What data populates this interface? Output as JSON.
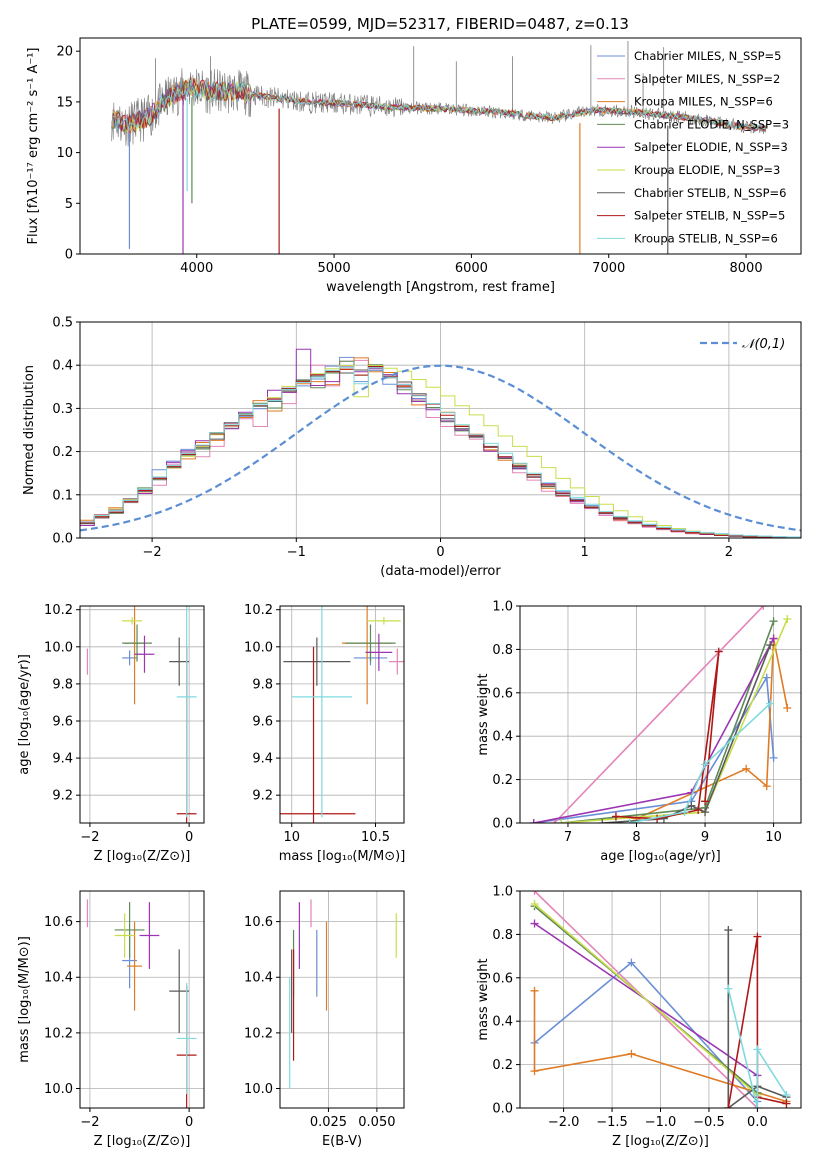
{
  "figure_title": "PLATE=0599, MJD=52317, FIBERID=0487, z=0.13",
  "chart_data": [
    {
      "id": "spectrum",
      "type": "line",
      "xlabel": "wavelength [Angstrom, rest frame]",
      "ylabel": "Flux [fλ10⁻¹⁷ erg cm⁻² s⁻¹ A⁻¹]",
      "xlim": [
        3150,
        8400
      ],
      "ylim": [
        0,
        21.3
      ],
      "xticks": [
        4000,
        5000,
        6000,
        7000,
        8000
      ],
      "yticks": [
        0,
        5,
        10,
        15,
        20
      ],
      "grid": false,
      "legend_position": "top-right",
      "legend": [
        "Chabrier MILES, N_SSP=5",
        "Salpeter MILES, N_SSP=2",
        "Kroupa MILES, N_SSP=6",
        "Chabrier ELODIE, N_SSP=3",
        "Salpeter ELODIE, N_SSP=3",
        "Kroupa ELODIE, N_SSP=3",
        "Chabrier STELIB, N_SSP=6",
        "Salpeter STELIB, N_SSP=5",
        "Kroupa STELIB, N_SSP=6"
      ],
      "continuum_x": [
        3350,
        3500,
        3650,
        3800,
        3950,
        4100,
        4300,
        4500,
        4800,
        5100,
        5400,
        5800,
        6200,
        6600,
        6900,
        7200,
        7600,
        8000,
        8150
      ],
      "continuum_y": [
        13.5,
        12.8,
        13.5,
        15.5,
        16.5,
        16.0,
        16.0,
        15.5,
        15.0,
        14.8,
        14.5,
        14.3,
        14.0,
        13.4,
        14.2,
        14.0,
        13.4,
        12.5,
        12.4
      ],
      "absorption_dips": [
        {
          "x": 3510,
          "y": 0.5
        },
        {
          "x": 3900,
          "y": 0
        },
        {
          "x": 3930,
          "y": 6.2
        },
        {
          "x": 3965,
          "y": 5.0
        },
        {
          "x": 4600,
          "y": 0
        },
        {
          "x": 6790,
          "y": 0
        },
        {
          "x": 7430,
          "y": 0
        }
      ],
      "emission_spikes": [
        {
          "x": 3700,
          "y": 19.3
        },
        {
          "x": 4100,
          "y": 19.5
        },
        {
          "x": 5580,
          "y": 20.5
        },
        {
          "x": 5890,
          "y": 19.0
        },
        {
          "x": 6300,
          "y": 19.5
        },
        {
          "x": 6870,
          "y": 20.6
        },
        {
          "x": 7140,
          "y": 21.0
        },
        {
          "x": 7250,
          "y": 17.8
        },
        {
          "x": 7400,
          "y": 20.4
        }
      ]
    },
    {
      "id": "residual_histogram",
      "type": "bar",
      "xlabel": "(data-model)/error",
      "ylabel": "Normed distribution",
      "xlim": [
        -2.5,
        2.5
      ],
      "ylim": [
        0,
        0.5
      ],
      "xticks": [
        -2,
        -1,
        0,
        1,
        2
      ],
      "yticks": [
        0.0,
        0.1,
        0.2,
        0.3,
        0.4,
        0.5
      ],
      "grid": true,
      "legend_position": "top-right",
      "legend": [
        "𝒩(0,1)"
      ],
      "bin_width": 0.1
    },
    {
      "id": "age_vs_Z",
      "type": "scatter",
      "xlabel": "Z [log₁₀(Z/Z⊙)]",
      "ylabel": "age  [log₁₀(age/yr)]",
      "xlim": [
        -2.2,
        0.3
      ],
      "ylim": [
        9.05,
        10.22
      ],
      "xticks": [
        -2,
        0
      ],
      "yticks": [
        9.2,
        9.4,
        9.6,
        9.8,
        10.0,
        10.2
      ],
      "grid": true
    },
    {
      "id": "age_vs_mass",
      "type": "scatter",
      "xlabel": "mass [log₁₀(M/M⊙)]",
      "ylabel": "",
      "xlim": [
        9.93,
        10.67
      ],
      "ylim": [
        9.05,
        10.22
      ],
      "xticks": [
        10.0,
        10.5
      ],
      "yticks": [
        9.2,
        9.4,
        9.6,
        9.8,
        10.0,
        10.2
      ],
      "grid": true
    },
    {
      "id": "massweight_vs_age",
      "type": "line",
      "xlabel": "age  [log₁₀(age/yr)]",
      "ylabel": "mass weight",
      "xlim": [
        6.3,
        10.4
      ],
      "ylim": [
        0,
        1.0
      ],
      "xticks": [
        7,
        8,
        9,
        10
      ],
      "yticks": [
        0.0,
        0.2,
        0.4,
        0.6,
        0.8,
        1.0
      ],
      "grid": true
    },
    {
      "id": "mass_vs_Z",
      "type": "scatter",
      "xlabel": "Z [log₁₀(Z/Z⊙)]",
      "ylabel": "mass [log₁₀(M/M⊙)]",
      "xlim": [
        -2.2,
        0.3
      ],
      "ylim": [
        9.93,
        10.71
      ],
      "xticks": [
        -2,
        0
      ],
      "yticks": [
        10.0,
        10.2,
        10.4,
        10.6
      ],
      "grid": true
    },
    {
      "id": "mass_vs_EBV",
      "type": "scatter",
      "xlabel": "E(B-V)",
      "ylabel": "",
      "xlim": [
        0.0,
        0.064
      ],
      "ylim": [
        9.93,
        10.71
      ],
      "xticks": [
        0.025,
        0.05
      ],
      "xticklabels": [
        "0.025",
        "0.050"
      ],
      "yticks": [
        10.0,
        10.2,
        10.4,
        10.6
      ],
      "grid": true
    },
    {
      "id": "massweight_vs_Z",
      "type": "line",
      "xlabel": "Z [log₁₀(Z/Z⊙)]",
      "ylabel": "mass weight",
      "xlim": [
        -2.45,
        0.45
      ],
      "ylim": [
        0,
        1.0
      ],
      "xticks": [
        -2.0,
        -1.5,
        -1.0,
        -0.5,
        0.0
      ],
      "xticklabels": [
        "−2.0",
        "−1.5",
        "−1.0",
        "−0.5",
        "0.0"
      ],
      "yticks": [
        0.0,
        0.2,
        0.4,
        0.6,
        0.8,
        1.0
      ],
      "grid": true
    }
  ],
  "series_colors": [
    "#6a8fd6",
    "#e285b8",
    "#e07b25",
    "#5e8a55",
    "#9b35b2",
    "#c9dd4b",
    "#5a5a5a",
    "#b01818",
    "#7fdade"
  ],
  "gaussian_color": "#5b8ed4",
  "hist_bins": [
    [
      0.034,
      0.052,
      0.064,
      0.082,
      0.112,
      0.158,
      0.178,
      0.205,
      0.214,
      0.24,
      0.26,
      0.281,
      0.299,
      0.32,
      0.347,
      0.352,
      0.368,
      0.398,
      0.418,
      0.362,
      0.388,
      0.356,
      0.348,
      0.323,
      0.302,
      0.276,
      0.258,
      0.237,
      0.21,
      0.188,
      0.165,
      0.147,
      0.126,
      0.107,
      0.09,
      0.075,
      0.059,
      0.048,
      0.039,
      0.031,
      0.024,
      0.019,
      0.015,
      0.012,
      0.01,
      0.007,
      0.005,
      0.004,
      0.003,
      0.002
    ],
    [
      0.038,
      0.046,
      0.06,
      0.086,
      0.104,
      0.122,
      0.171,
      0.198,
      0.188,
      0.212,
      0.265,
      0.276,
      0.258,
      0.321,
      0.311,
      0.36,
      0.4,
      0.352,
      0.409,
      0.411,
      0.395,
      0.378,
      0.356,
      0.32,
      0.279,
      0.258,
      0.238,
      0.229,
      0.202,
      0.184,
      0.151,
      0.134,
      0.108,
      0.096,
      0.08,
      0.068,
      0.052,
      0.04,
      0.033,
      0.025,
      0.019,
      0.014,
      0.01,
      0.008,
      0.006,
      0.004,
      0.003,
      0.002,
      0.001,
      0.001
    ],
    [
      0.041,
      0.054,
      0.07,
      0.083,
      0.104,
      0.14,
      0.162,
      0.183,
      0.221,
      0.226,
      0.259,
      0.279,
      0.318,
      0.294,
      0.337,
      0.357,
      0.362,
      0.355,
      0.39,
      0.417,
      0.385,
      0.383,
      0.35,
      0.308,
      0.302,
      0.291,
      0.261,
      0.24,
      0.204,
      0.18,
      0.172,
      0.14,
      0.115,
      0.098,
      0.087,
      0.07,
      0.059,
      0.042,
      0.035,
      0.028,
      0.022,
      0.016,
      0.011,
      0.009,
      0.007,
      0.005,
      0.003,
      0.002,
      0.002,
      0.001
    ],
    [
      0.036,
      0.05,
      0.057,
      0.091,
      0.116,
      0.141,
      0.164,
      0.192,
      0.206,
      0.244,
      0.254,
      0.288,
      0.312,
      0.301,
      0.343,
      0.366,
      0.348,
      0.382,
      0.409,
      0.377,
      0.401,
      0.378,
      0.343,
      0.317,
      0.302,
      0.269,
      0.248,
      0.233,
      0.211,
      0.187,
      0.168,
      0.147,
      0.119,
      0.104,
      0.087,
      0.072,
      0.058,
      0.047,
      0.036,
      0.029,
      0.023,
      0.016,
      0.012,
      0.009,
      0.006,
      0.005,
      0.003,
      0.002,
      0.001,
      0.001
    ],
    [
      0.029,
      0.053,
      0.066,
      0.09,
      0.103,
      0.14,
      0.175,
      0.202,
      0.225,
      0.24,
      0.253,
      0.291,
      0.306,
      0.342,
      0.337,
      0.437,
      0.353,
      0.362,
      0.396,
      0.385,
      0.392,
      0.378,
      0.334,
      0.316,
      0.297,
      0.271,
      0.25,
      0.235,
      0.201,
      0.187,
      0.16,
      0.141,
      0.126,
      0.103,
      0.084,
      0.07,
      0.056,
      0.044,
      0.036,
      0.027,
      0.021,
      0.016,
      0.012,
      0.008,
      0.006,
      0.005,
      0.003,
      0.002,
      0.001,
      0.001
    ],
    [
      0.036,
      0.05,
      0.067,
      0.089,
      0.108,
      0.137,
      0.163,
      0.189,
      0.211,
      0.239,
      0.26,
      0.284,
      0.306,
      0.325,
      0.351,
      0.364,
      0.38,
      0.392,
      0.399,
      0.327,
      0.399,
      0.393,
      0.386,
      0.367,
      0.349,
      0.329,
      0.306,
      0.285,
      0.26,
      0.236,
      0.212,
      0.189,
      0.163,
      0.138,
      0.116,
      0.096,
      0.078,
      0.063,
      0.049,
      0.039,
      0.029,
      0.022,
      0.016,
      0.012,
      0.008,
      0.006,
      0.004,
      0.003,
      0.002,
      0.001
    ],
    [
      0.033,
      0.047,
      0.059,
      0.086,
      0.108,
      0.135,
      0.164,
      0.193,
      0.209,
      0.229,
      0.267,
      0.284,
      0.305,
      0.316,
      0.34,
      0.365,
      0.375,
      0.386,
      0.382,
      0.389,
      0.394,
      0.371,
      0.361,
      0.334,
      0.311,
      0.276,
      0.253,
      0.234,
      0.212,
      0.184,
      0.162,
      0.142,
      0.12,
      0.099,
      0.088,
      0.07,
      0.057,
      0.045,
      0.035,
      0.028,
      0.021,
      0.016,
      0.012,
      0.009,
      0.006,
      0.004,
      0.003,
      0.002,
      0.001,
      0.001
    ],
    [
      0.035,
      0.049,
      0.06,
      0.084,
      0.11,
      0.138,
      0.166,
      0.194,
      0.214,
      0.241,
      0.26,
      0.285,
      0.307,
      0.322,
      0.346,
      0.362,
      0.378,
      0.385,
      0.391,
      0.377,
      0.397,
      0.374,
      0.352,
      0.33,
      0.31,
      0.284,
      0.258,
      0.237,
      0.21,
      0.188,
      0.166,
      0.146,
      0.123,
      0.104,
      0.086,
      0.071,
      0.058,
      0.046,
      0.036,
      0.028,
      0.022,
      0.016,
      0.012,
      0.009,
      0.006,
      0.005,
      0.003,
      0.002,
      0.001,
      0.001
    ],
    [
      0.037,
      0.052,
      0.063,
      0.087,
      0.113,
      0.141,
      0.168,
      0.196,
      0.215,
      0.243,
      0.262,
      0.286,
      0.308,
      0.318,
      0.344,
      0.36,
      0.372,
      0.388,
      0.395,
      0.357,
      0.394,
      0.372,
      0.355,
      0.329,
      0.311,
      0.29,
      0.262,
      0.239,
      0.219,
      0.196,
      0.173,
      0.15,
      0.128,
      0.11,
      0.094,
      0.078,
      0.061,
      0.05,
      0.04,
      0.032,
      0.025,
      0.02,
      0.015,
      0.012,
      0.01,
      0.007,
      0.005,
      0.004,
      0.003,
      0.002
    ]
  ],
  "ssp_errorbars": {
    "age_vs_Z": [
      {
        "x": -1.2,
        "y": 9.94,
        "xerr": 0.15,
        "yerr": 0.04
      },
      {
        "x": -2.05,
        "y": 9.92,
        "xerr": 0.0,
        "yerr": 0.07
      },
      {
        "x": -1.1,
        "y": 10.02,
        "xerr": 0.2,
        "yerr": 0.33
      },
      {
        "x": -1.05,
        "y": 10.02,
        "xerr": 0.3,
        "yerr": 0.1
      },
      {
        "x": -0.9,
        "y": 9.96,
        "xerr": 0.2,
        "yerr": 0.1
      },
      {
        "x": -1.15,
        "y": 10.14,
        "xerr": 0.2,
        "yerr": 0.02
      },
      {
        "x": -0.2,
        "y": 9.92,
        "xerr": 0.2,
        "yerr": 0.13
      },
      {
        "x": -0.05,
        "y": 9.1,
        "xerr": 0.2,
        "yerr": 0.9
      },
      {
        "x": -0.05,
        "y": 9.73,
        "xerr": 0.2,
        "yerr": 0.65
      }
    ],
    "age_vs_mass": [
      {
        "x": 10.47,
        "y": 9.94,
        "xerr": 0.1,
        "yerr": 0.04
      },
      {
        "x": 10.63,
        "y": 9.92,
        "xerr": 0.05,
        "yerr": 0.07
      },
      {
        "x": 10.45,
        "y": 10.02,
        "xerr": 0.15,
        "yerr": 0.33
      },
      {
        "x": 10.47,
        "y": 10.02,
        "xerr": 0.15,
        "yerr": 0.1
      },
      {
        "x": 10.52,
        "y": 9.97,
        "xerr": 0.08,
        "yerr": 0.1
      },
      {
        "x": 10.55,
        "y": 10.14,
        "xerr": 0.1,
        "yerr": 0.02
      },
      {
        "x": 10.15,
        "y": 9.92,
        "xerr": 0.2,
        "yerr": 0.13
      },
      {
        "x": 10.13,
        "y": 9.1,
        "xerr": 0.25,
        "yerr": 0.9
      },
      {
        "x": 10.18,
        "y": 9.73,
        "xerr": 0.18,
        "yerr": 0.65
      }
    ],
    "mass_vs_Z": [
      {
        "x": -1.2,
        "y": 10.46,
        "xerr": 0.15,
        "yerr": 0.1
      },
      {
        "x": -2.05,
        "y": 10.63,
        "xerr": 0.0,
        "yerr": 0.05
      },
      {
        "x": -1.1,
        "y": 10.44,
        "xerr": 0.15,
        "yerr": 0.16
      },
      {
        "x": -1.2,
        "y": 10.57,
        "xerr": 0.3,
        "yerr": 0.1
      },
      {
        "x": -0.8,
        "y": 10.55,
        "xerr": 0.2,
        "yerr": 0.12
      },
      {
        "x": -1.3,
        "y": 10.55,
        "xerr": 0.2,
        "yerr": 0.08
      },
      {
        "x": -0.2,
        "y": 10.35,
        "xerr": 0.2,
        "yerr": 0.15
      },
      {
        "x": -0.05,
        "y": 10.12,
        "xerr": 0.2,
        "yerr": 0.25
      },
      {
        "x": -0.05,
        "y": 10.18,
        "xerr": 0.2,
        "yerr": 0.2
      }
    ],
    "mass_vs_EBV": [
      {
        "x": 0.019,
        "y": 10.45,
        "xerr": 0.0,
        "yerr": 0.12
      },
      {
        "x": 0.016,
        "y": 10.63,
        "xerr": 0.0,
        "yerr": 0.05
      },
      {
        "x": 0.024,
        "y": 10.44,
        "xerr": 0.0,
        "yerr": 0.16
      },
      {
        "x": 0.007,
        "y": 10.45,
        "xerr": 0.0,
        "yerr": 0.12
      },
      {
        "x": 0.01,
        "y": 10.55,
        "xerr": 0.0,
        "yerr": 0.12
      },
      {
        "x": 0.06,
        "y": 10.55,
        "xerr": 0.0,
        "yerr": 0.08
      },
      {
        "x": 0.006,
        "y": 10.35,
        "xerr": 0.0,
        "yerr": 0.15
      },
      {
        "x": 0.007,
        "y": 10.3,
        "xerr": 0.0,
        "yerr": 0.2
      },
      {
        "x": 0.005,
        "y": 10.2,
        "xerr": 0.0,
        "yerr": 0.2
      }
    ]
  },
  "mass_weight_series": {
    "age": [
      [
        [
          6.5,
          0.0
        ],
        [
          8.8,
          0.1
        ],
        [
          9.9,
          0.67
        ],
        [
          10.0,
          0.3
        ]
      ],
      [
        [
          6.8,
          0.0
        ],
        [
          9.85,
          1.0
        ]
      ],
      [
        [
          7.7,
          0.03
        ],
        [
          8.0,
          0.02
        ],
        [
          9.6,
          0.25
        ],
        [
          9.9,
          0.17
        ],
        [
          10.0,
          0.85
        ],
        [
          10.2,
          0.53
        ]
      ],
      [
        [
          6.9,
          0.0
        ],
        [
          9.0,
          0.07
        ],
        [
          10.0,
          0.93
        ]
      ],
      [
        [
          6.5,
          0.0
        ],
        [
          8.8,
          0.14
        ],
        [
          10.0,
          0.85
        ]
      ],
      [
        [
          6.9,
          0.0
        ],
        [
          9.0,
          0.05
        ],
        [
          10.2,
          0.94
        ]
      ],
      [
        [
          7.5,
          0.0
        ],
        [
          8.4,
          0.02
        ],
        [
          8.8,
          0.08
        ],
        [
          9.0,
          0.05
        ],
        [
          9.95,
          0.82
        ]
      ],
      [
        [
          7.7,
          0.03
        ],
        [
          8.3,
          0.02
        ],
        [
          8.9,
          0.06
        ],
        [
          9.2,
          0.79
        ],
        [
          9.0,
          0.1
        ]
      ],
      [
        [
          7.9,
          0.0
        ],
        [
          8.7,
          0.05
        ],
        [
          9.0,
          0.27
        ],
        [
          9.95,
          0.55
        ]
      ]
    ],
    "Z": [
      [
        [
          -2.3,
          0.3
        ],
        [
          -1.3,
          0.67
        ],
        [
          0.0,
          0.03
        ]
      ],
      [
        [
          -2.3,
          1.0
        ],
        [
          0.0,
          0.0
        ]
      ],
      [
        [
          -2.3,
          0.54
        ],
        [
          -2.3,
          0.17
        ],
        [
          -1.3,
          0.25
        ],
        [
          0.3,
          0.03
        ]
      ],
      [
        [
          -2.3,
          0.93
        ],
        [
          0.0,
          0.07
        ]
      ],
      [
        [
          -2.3,
          0.85
        ],
        [
          0.0,
          0.15
        ]
      ],
      [
        [
          -2.3,
          0.94
        ],
        [
          0.0,
          0.06
        ]
      ],
      [
        [
          -0.3,
          0.82
        ],
        [
          -0.3,
          0.0
        ],
        [
          0.0,
          0.1
        ],
        [
          0.3,
          0.05
        ]
      ],
      [
        [
          -0.3,
          0.0
        ],
        [
          0.0,
          0.79
        ],
        [
          0.0,
          0.05
        ],
        [
          0.3,
          0.02
        ]
      ],
      [
        [
          -0.3,
          0.55
        ],
        [
          0.0,
          0.0
        ],
        [
          0.0,
          0.27
        ],
        [
          0.3,
          0.06
        ]
      ]
    ]
  }
}
